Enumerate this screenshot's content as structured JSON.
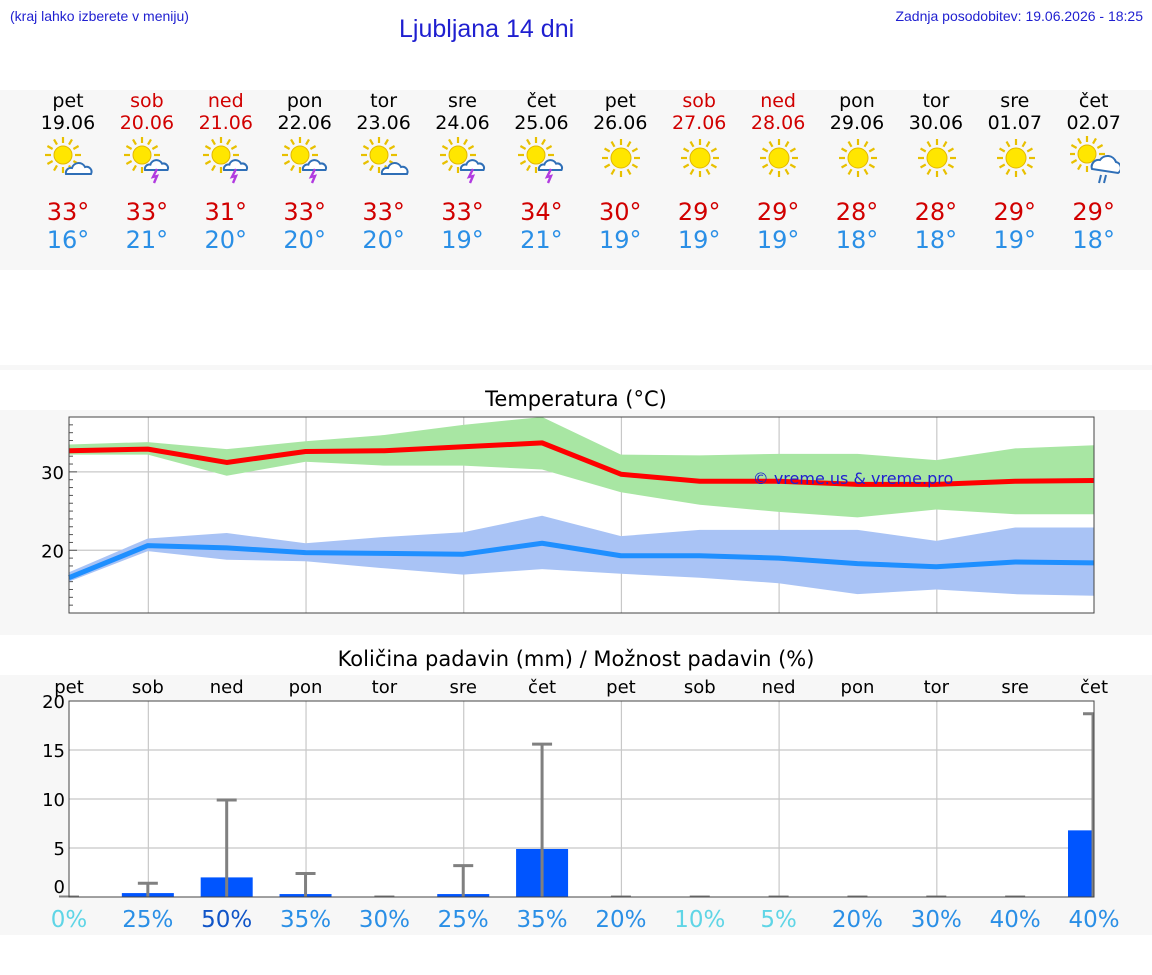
{
  "header": {
    "hint": "(kraj lahko izberete v meniju)",
    "title": "Ljubljana 14 dni",
    "updated": "Zadnja posodobitev: 19.06.2026 - 18:25"
  },
  "colors": {
    "link_blue": "#1f1fd0",
    "max_red": "#d10000",
    "min_blue": "#2a8fe6",
    "weekend_red": "#d10000",
    "max_band_green": "#a8e6a3",
    "min_band_blue": "#a9c3f5",
    "max_line": "#ff0000",
    "min_line": "#1e8fff",
    "precip_bar": "#0055ff"
  },
  "days": [
    {
      "name": "pet",
      "date": "19.06",
      "weekend": false,
      "icon": "sun-cloud-icon",
      "max": "33°",
      "min": "16°"
    },
    {
      "name": "sob",
      "date": "20.06",
      "weekend": true,
      "icon": "sun-thunderstorm-icon",
      "max": "33°",
      "min": "21°"
    },
    {
      "name": "ned",
      "date": "21.06",
      "weekend": true,
      "icon": "sun-thunderstorm-icon",
      "max": "31°",
      "min": "20°"
    },
    {
      "name": "pon",
      "date": "22.06",
      "weekend": false,
      "icon": "sun-thunderstorm-icon",
      "max": "33°",
      "min": "20°"
    },
    {
      "name": "tor",
      "date": "23.06",
      "weekend": false,
      "icon": "sun-cloud-icon",
      "max": "33°",
      "min": "20°"
    },
    {
      "name": "sre",
      "date": "24.06",
      "weekend": false,
      "icon": "sun-thunderstorm-icon",
      "max": "33°",
      "min": "19°"
    },
    {
      "name": "čet",
      "date": "25.06",
      "weekend": false,
      "icon": "sun-thunderstorm-icon",
      "max": "34°",
      "min": "21°"
    },
    {
      "name": "pet",
      "date": "26.06",
      "weekend": false,
      "icon": "sun-icon",
      "max": "30°",
      "min": "19°"
    },
    {
      "name": "sob",
      "date": "27.06",
      "weekend": true,
      "icon": "sun-icon",
      "max": "29°",
      "min": "19°"
    },
    {
      "name": "ned",
      "date": "28.06",
      "weekend": true,
      "icon": "sun-icon",
      "max": "29°",
      "min": "19°"
    },
    {
      "name": "pon",
      "date": "29.06",
      "weekend": false,
      "icon": "sun-icon",
      "max": "28°",
      "min": "18°"
    },
    {
      "name": "tor",
      "date": "30.06",
      "weekend": false,
      "icon": "sun-icon",
      "max": "28°",
      "min": "18°"
    },
    {
      "name": "sre",
      "date": "01.07",
      "weekend": false,
      "icon": "sun-icon",
      "max": "29°",
      "min": "19°"
    },
    {
      "name": "čet",
      "date": "02.07",
      "weekend": false,
      "icon": "sun-rain-icon",
      "max": "29°",
      "min": "18°"
    }
  ],
  "chart_data": [
    {
      "type": "line",
      "title": "Temperatura (°C)",
      "watermark": "© vreme.us & vreme.pro",
      "ylim": [
        12,
        37
      ],
      "yticks": [
        20,
        30
      ],
      "grid": true,
      "x": [
        0,
        1,
        2,
        3,
        4,
        5,
        6,
        7,
        8,
        9,
        10,
        11,
        12,
        13
      ],
      "series": [
        {
          "values": [
            32.7,
            32.9,
            31.2,
            32.6,
            32.7,
            33.2,
            33.7,
            29.7,
            28.8,
            28.8,
            28.4,
            28.4,
            28.8,
            28.9
          ]
        },
        {
          "values": [
            16.5,
            20.6,
            20.3,
            19.7,
            19.6,
            19.5,
            20.9,
            19.3,
            19.3,
            19.0,
            18.3,
            17.9,
            18.5,
            18.4
          ]
        }
      ],
      "max_band": {
        "upper": [
          33.5,
          33.8,
          32.9,
          33.9,
          34.7,
          36.0,
          37.0,
          32.2,
          32.1,
          32.3,
          32.3,
          31.5,
          33.0,
          33.4
        ],
        "lower": [
          32.2,
          32.2,
          29.5,
          31.3,
          30.8,
          30.8,
          30.3,
          27.4,
          25.8,
          24.9,
          24.2,
          25.2,
          24.6,
          24.6
        ]
      },
      "min_band": {
        "upper": [
          17.2,
          21.5,
          22.2,
          20.9,
          21.7,
          22.3,
          24.4,
          21.8,
          22.6,
          22.6,
          22.6,
          21.2,
          22.9,
          22.9
        ],
        "lower": [
          16.0,
          19.9,
          18.8,
          18.6,
          17.7,
          16.9,
          17.6,
          17.0,
          16.5,
          15.8,
          14.4,
          15.0,
          14.4,
          14.2
        ]
      }
    },
    {
      "type": "bar",
      "title": "Količina padavin (mm) / Možnost padavin (%)",
      "categories": [
        "pet",
        "sob",
        "ned",
        "pon",
        "tor",
        "sre",
        "čet",
        "pet",
        "sob",
        "ned",
        "pon",
        "tor",
        "sre",
        "čet"
      ],
      "ylim": [
        0,
        20
      ],
      "yticks": [
        0,
        5,
        10,
        15,
        20
      ],
      "grid": true,
      "series": [
        {
          "values": [
            0,
            0.4,
            2.0,
            0.3,
            0,
            0.3,
            4.9,
            0,
            0,
            0,
            0,
            0,
            0,
            6.8
          ]
        },
        {
          "values": [
            0,
            1.4,
            9.9,
            2.4,
            0,
            3.2,
            15.6,
            0,
            0,
            0,
            0,
            0,
            0,
            18.7
          ]
        }
      ],
      "probability": [
        "0%",
        "25%",
        "50%",
        "35%",
        "30%",
        "25%",
        "35%",
        "20%",
        "10%",
        "5%",
        "20%",
        "30%",
        "40%",
        "40%"
      ],
      "probability_colors": [
        "#5fd5e6",
        "#2a8fe6",
        "#1055c8",
        "#2a8fe6",
        "#2a8fe6",
        "#2a8fe6",
        "#2a8fe6",
        "#2a8fe6",
        "#5fd5e6",
        "#5fd5e6",
        "#2a8fe6",
        "#2a8fe6",
        "#2a8fe6",
        "#2a8fe6"
      ]
    }
  ]
}
